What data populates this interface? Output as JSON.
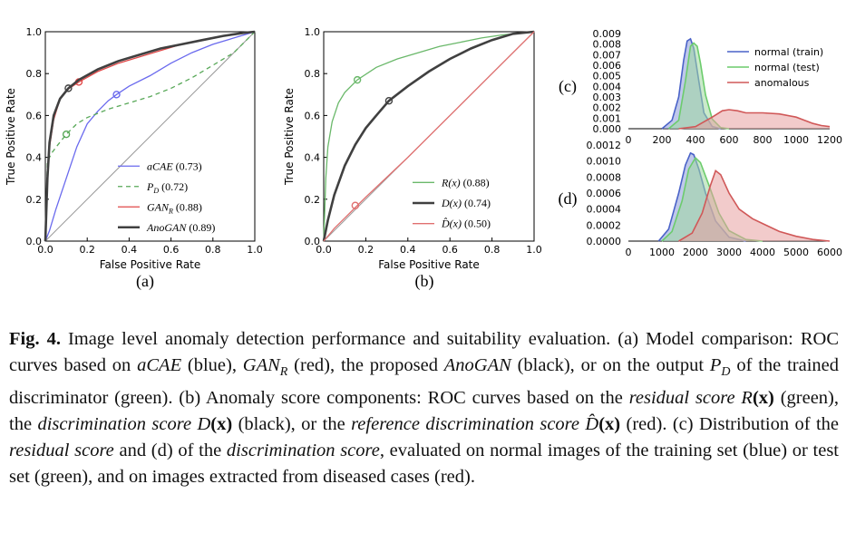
{
  "chart_data": [
    {
      "id": "a",
      "type": "line",
      "panel_label": "(a)",
      "xlabel": "False Positive Rate",
      "ylabel": "True Positive Rate",
      "xlim": [
        0,
        1
      ],
      "ylim": [
        0,
        1
      ],
      "xticks": [
        "0.0",
        "0.2",
        "0.4",
        "0.6",
        "0.8",
        "1.0"
      ],
      "yticks": [
        "0.0",
        "0.2",
        "0.4",
        "0.6",
        "0.8",
        "1.0"
      ],
      "legend_position": "lower-right",
      "series": [
        {
          "name": "aCAE",
          "auc": "(0.73)",
          "color": "#6a6aee",
          "dash": "",
          "x": [
            0,
            0.02,
            0.05,
            0.1,
            0.15,
            0.2,
            0.25,
            0.3,
            0.34,
            0.4,
            0.5,
            0.6,
            0.7,
            0.8,
            0.9,
            1.0
          ],
          "y": [
            0,
            0.05,
            0.15,
            0.3,
            0.45,
            0.56,
            0.62,
            0.67,
            0.7,
            0.74,
            0.79,
            0.85,
            0.9,
            0.94,
            0.97,
            1.0
          ],
          "marker": [
            0.34,
            0.7
          ]
        },
        {
          "name": "P",
          "sub": "D",
          "auc": "(0.72)",
          "color": "#58a858",
          "dash": "5,4",
          "x": [
            0,
            0.01,
            0.03,
            0.06,
            0.1,
            0.15,
            0.2,
            0.3,
            0.4,
            0.5,
            0.6,
            0.7,
            0.8,
            0.9,
            1.0
          ],
          "y": [
            0,
            0.38,
            0.42,
            0.46,
            0.51,
            0.56,
            0.59,
            0.63,
            0.66,
            0.69,
            0.73,
            0.78,
            0.84,
            0.9,
            1.0
          ],
          "marker": [
            0.1,
            0.51
          ]
        },
        {
          "name": "GAN",
          "sub": "R",
          "auc": "(0.88)",
          "color": "#e04848",
          "dash": "",
          "x": [
            0,
            0.01,
            0.02,
            0.04,
            0.07,
            0.1,
            0.16,
            0.25,
            0.35,
            0.45,
            0.55,
            0.65,
            0.75,
            0.85,
            0.95,
            1.0
          ],
          "y": [
            0,
            0.3,
            0.45,
            0.58,
            0.68,
            0.72,
            0.76,
            0.81,
            0.85,
            0.88,
            0.91,
            0.94,
            0.96,
            0.98,
            0.995,
            1.0
          ],
          "marker": [
            0.16,
            0.76
          ]
        },
        {
          "name": "AnoGAN",
          "auc": "(0.89)",
          "color": "#404040",
          "dash": "",
          "x": [
            0,
            0.01,
            0.02,
            0.04,
            0.07,
            0.11,
            0.16,
            0.25,
            0.35,
            0.45,
            0.55,
            0.65,
            0.75,
            0.85,
            0.95,
            1.0
          ],
          "y": [
            0,
            0.3,
            0.47,
            0.6,
            0.68,
            0.73,
            0.77,
            0.82,
            0.86,
            0.89,
            0.92,
            0.94,
            0.96,
            0.98,
            0.995,
            1.0
          ],
          "marker": [
            0.11,
            0.73
          ]
        }
      ]
    },
    {
      "id": "b",
      "type": "line",
      "panel_label": "(b)",
      "xlabel": "False Positive Rate",
      "ylabel": "True Positive Rate",
      "xlim": [
        0,
        1
      ],
      "ylim": [
        0,
        1
      ],
      "xticks": [
        "0.0",
        "0.2",
        "0.4",
        "0.6",
        "0.8",
        "1.0"
      ],
      "yticks": [
        "0.0",
        "0.2",
        "0.4",
        "0.6",
        "0.8",
        "1.0"
      ],
      "legend_position": "lower-right",
      "series": [
        {
          "name": "R(x)",
          "auc": "(0.88)",
          "color": "#6ab86a",
          "dash": "",
          "x": [
            0,
            0.01,
            0.02,
            0.04,
            0.07,
            0.1,
            0.16,
            0.25,
            0.35,
            0.45,
            0.55,
            0.65,
            0.75,
            0.85,
            0.95,
            1.0
          ],
          "y": [
            0,
            0.3,
            0.45,
            0.57,
            0.66,
            0.71,
            0.77,
            0.83,
            0.87,
            0.9,
            0.93,
            0.95,
            0.97,
            0.985,
            0.995,
            1.0
          ],
          "marker": [
            0.16,
            0.77
          ]
        },
        {
          "name": "D(x)",
          "auc": "(0.74)",
          "color": "#404040",
          "dash": "",
          "x": [
            0,
            0.02,
            0.05,
            0.1,
            0.15,
            0.2,
            0.25,
            0.31,
            0.4,
            0.5,
            0.6,
            0.7,
            0.8,
            0.9,
            1.0
          ],
          "y": [
            0,
            0.1,
            0.22,
            0.36,
            0.46,
            0.54,
            0.6,
            0.67,
            0.74,
            0.81,
            0.87,
            0.92,
            0.96,
            0.99,
            1.0
          ],
          "marker": [
            0.31,
            0.67
          ]
        },
        {
          "name": "D̂(x)",
          "auc": "(0.50)",
          "color": "#e07070",
          "dash": "",
          "x": [
            0,
            0.05,
            0.1,
            0.15,
            0.2,
            0.4,
            0.6,
            0.8,
            1.0
          ],
          "y": [
            0,
            0.06,
            0.11,
            0.16,
            0.21,
            0.4,
            0.6,
            0.8,
            1.0
          ],
          "marker": [
            0.15,
            0.17
          ]
        }
      ]
    },
    {
      "id": "c",
      "type": "area",
      "panel_label": "(c)",
      "xlim": [
        0,
        1200
      ],
      "ylim": [
        0,
        0.009
      ],
      "xticks": [
        "0",
        "200",
        "400",
        "600",
        "800",
        "1000",
        "1200"
      ],
      "yticks": [
        "0.000",
        "0.001",
        "0.002",
        "0.003",
        "0.004",
        "0.005",
        "0.006",
        "0.007",
        "0.008",
        "0.009"
      ],
      "legend_position": "top-right",
      "series": [
        {
          "name": "normal (train)",
          "color": "#4a62c8",
          "fill": "#8a9ad8",
          "x": [
            200,
            260,
            300,
            330,
            350,
            370,
            390,
            420,
            450,
            500,
            550
          ],
          "y": [
            0,
            0.0008,
            0.003,
            0.0065,
            0.0083,
            0.0085,
            0.0076,
            0.0045,
            0.0015,
            0.0002,
            0
          ]
        },
        {
          "name": "normal (test)",
          "color": "#6ccc6c",
          "fill": "#9ed89e",
          "x": [
            240,
            300,
            340,
            370,
            390,
            410,
            430,
            460,
            500,
            550,
            600
          ],
          "y": [
            0,
            0.0008,
            0.0045,
            0.0078,
            0.0081,
            0.0078,
            0.0062,
            0.0032,
            0.0009,
            0.0001,
            0
          ]
        },
        {
          "name": "anomalous",
          "color": "#d05858",
          "fill": "#e8a0a0",
          "x": [
            300,
            400,
            500,
            560,
            600,
            650,
            700,
            800,
            900,
            1000,
            1050,
            1100,
            1150,
            1200
          ],
          "y": [
            0,
            0.0002,
            0.0011,
            0.0017,
            0.0018,
            0.0017,
            0.0015,
            0.0015,
            0.0014,
            0.0011,
            0.0008,
            0.0005,
            0.0003,
            0.0002
          ]
        }
      ]
    },
    {
      "id": "d",
      "type": "area",
      "panel_label": "(d)",
      "xlim": [
        0,
        6000
      ],
      "ylim": [
        0,
        0.0012
      ],
      "xticks": [
        "0",
        "1000",
        "2000",
        "3000",
        "4000",
        "5000",
        "6000"
      ],
      "yticks": [
        "0.0000",
        "0.0002",
        "0.0004",
        "0.0006",
        "0.0008",
        "0.0010",
        "0.0012"
      ],
      "series": [
        {
          "name": "normal (train)",
          "color": "#4a62c8",
          "fill": "#8a9ad8",
          "x": [
            900,
            1200,
            1500,
            1700,
            1850,
            1950,
            2100,
            2300,
            2600,
            3000,
            3500
          ],
          "y": [
            0,
            0.00015,
            0.0006,
            0.00095,
            0.0011,
            0.00108,
            0.0009,
            0.0006,
            0.00025,
            5e-05,
            0
          ]
        },
        {
          "name": "normal (test)",
          "color": "#6ccc6c",
          "fill": "#9ed89e",
          "x": [
            1000,
            1300,
            1600,
            1800,
            2000,
            2150,
            2400,
            2700,
            3000,
            3500,
            4000
          ],
          "y": [
            0,
            0.00012,
            0.0005,
            0.0009,
            0.00104,
            0.00098,
            0.0007,
            0.00035,
            0.00013,
            2e-05,
            0
          ]
        },
        {
          "name": "anomalous",
          "color": "#d05858",
          "fill": "#e8a0a0",
          "x": [
            1500,
            1900,
            2200,
            2450,
            2600,
            2750,
            3000,
            3300,
            3700,
            4000,
            4500,
            5000,
            5500,
            6000
          ],
          "y": [
            0,
            0.0001,
            0.00035,
            0.0007,
            0.00088,
            0.00083,
            0.0006,
            0.0004,
            0.00028,
            0.00022,
            0.00012,
            6e-05,
            2e-05,
            0
          ]
        }
      ]
    }
  ],
  "caption": {
    "fig_label": "Fig. 4.",
    "text_parts": [
      {
        "t": " Image level anomaly detection performance and suitability evaluation. (a) Model comparison: ROC curves based on ",
        "s": "n"
      },
      {
        "t": "aCAE",
        "s": "i"
      },
      {
        "t": " (blue), ",
        "s": "n"
      },
      {
        "t": "GAN",
        "s": "i"
      },
      {
        "t": "R",
        "s": "sub"
      },
      {
        "t": " (red), the proposed ",
        "s": "n"
      },
      {
        "t": "AnoGAN",
        "s": "i"
      },
      {
        "t": " (black), or on the output ",
        "s": "n"
      },
      {
        "t": "P",
        "s": "i"
      },
      {
        "t": "D",
        "s": "sub"
      },
      {
        "t": " of the trained discriminator (green). (b) Anomaly score components: ROC curves based on the ",
        "s": "n"
      },
      {
        "t": "residual score",
        "s": "i"
      },
      {
        "t": " R",
        "s": "i"
      },
      {
        "t": "(x)",
        "s": "b"
      },
      {
        "t": " (green), the ",
        "s": "n"
      },
      {
        "t": "discrimination score",
        "s": "i"
      },
      {
        "t": " D",
        "s": "i"
      },
      {
        "t": "(x)",
        "s": "b"
      },
      {
        "t": " (black), or the ",
        "s": "n"
      },
      {
        "t": "reference discrimination score",
        "s": "i"
      },
      {
        "t": " D̂",
        "s": "i"
      },
      {
        "t": "(x)",
        "s": "b"
      },
      {
        "t": " (red). (c) Distribution of the ",
        "s": "n"
      },
      {
        "t": "residual score",
        "s": "i"
      },
      {
        "t": " and (d) of the ",
        "s": "n"
      },
      {
        "t": "discrimination score",
        "s": "i"
      },
      {
        "t": ", evaluated on normal images of the training set (blue) or test set (green), and on images extracted from diseased cases (red).",
        "s": "n"
      }
    ]
  }
}
